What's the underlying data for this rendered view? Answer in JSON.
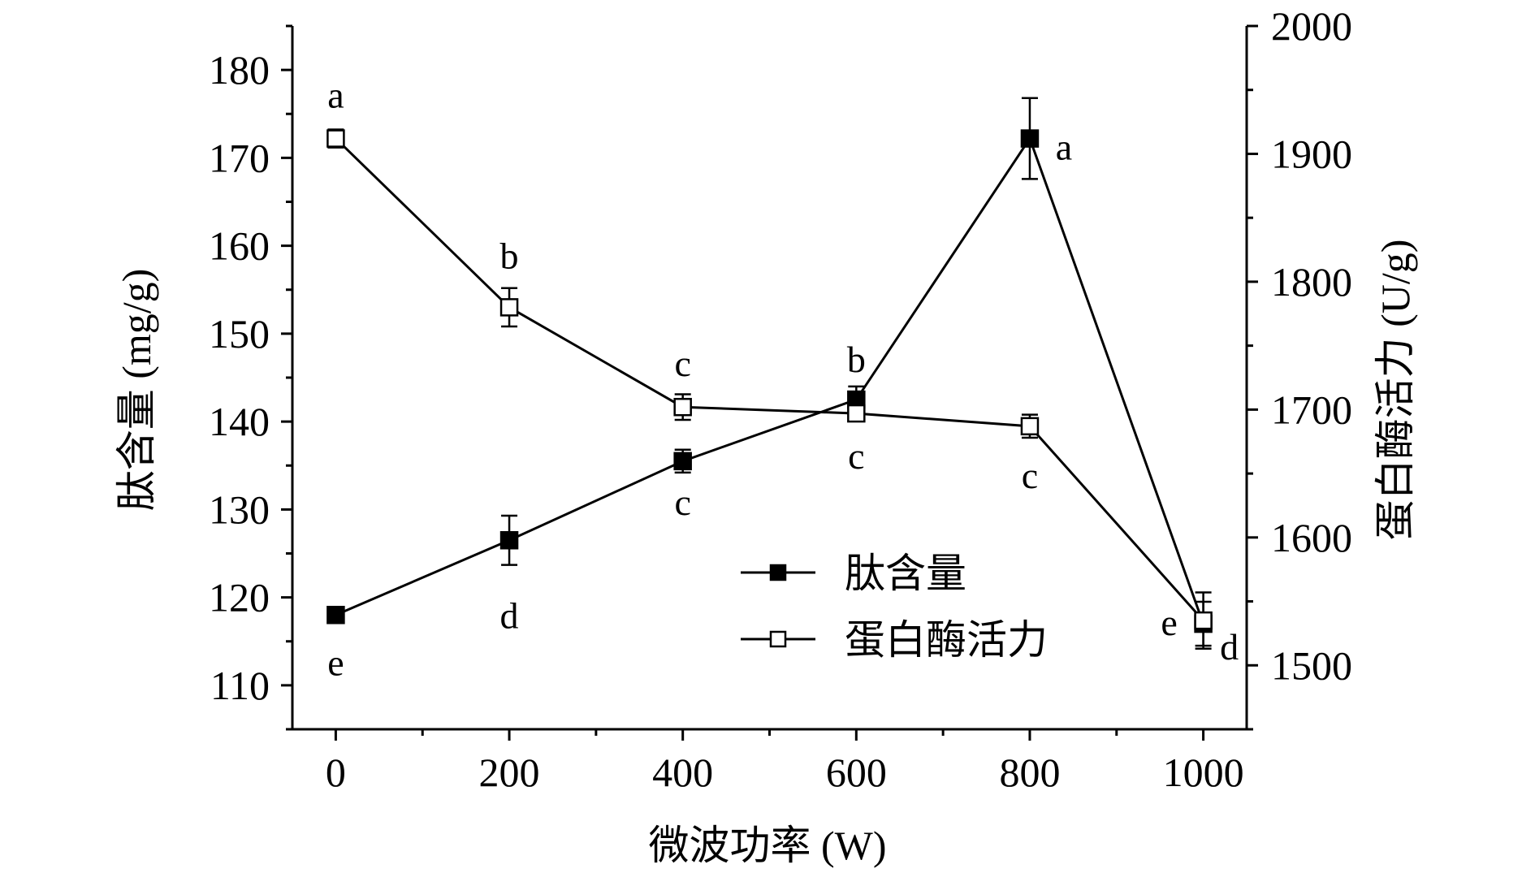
{
  "chart_data": {
    "type": "line",
    "xlabel": "微波功率 (W)",
    "ylabel_left": "肽含量 (mg/g)",
    "ylabel_right": "蛋白酶活力 (U/g)",
    "x": [
      0,
      200,
      400,
      600,
      800,
      1000
    ],
    "x_ticks": [
      "0",
      "200",
      "400",
      "600",
      "800",
      "1000"
    ],
    "xlim": [
      -50,
      1050
    ],
    "ylim_left": [
      105,
      185
    ],
    "ylim_right": [
      1450,
      2000
    ],
    "y_left_ticks": [
      "110",
      "120",
      "130",
      "140",
      "150",
      "160",
      "170",
      "180"
    ],
    "y_right_ticks": [
      "1500",
      "1600",
      "1700",
      "1800",
      "1900",
      "2000"
    ],
    "grid": false,
    "legend_position": "center-right",
    "series": [
      {
        "name": "肽含量",
        "axis": "left",
        "marker": "filled-square",
        "color": "#000000",
        "values": [
          118,
          126.5,
          135.5,
          142.5,
          172.2,
          117
        ],
        "errors": [
          0.7,
          2.8,
          1.3,
          1.5,
          4.6,
          2.5
        ],
        "labels": [
          "e",
          "d",
          "c",
          "b",
          "a",
          "e"
        ]
      },
      {
        "name": "蛋白酶活力",
        "axis": "right",
        "marker": "open-square",
        "color": "#000000",
        "values": [
          1912,
          1780,
          1702,
          1697,
          1687,
          1535
        ],
        "errors": [
          7,
          15,
          10,
          5,
          9,
          22
        ],
        "labels": [
          "a",
          "b",
          "c",
          "c",
          "c",
          "d"
        ]
      }
    ]
  }
}
